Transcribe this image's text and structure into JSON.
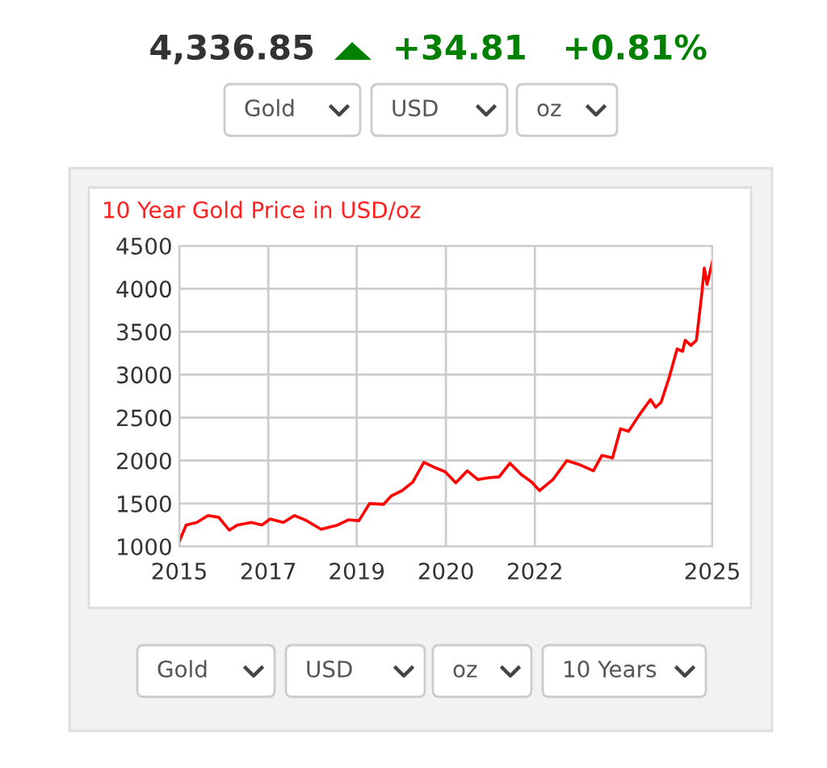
{
  "chart_data": {
    "type": "line",
    "title": "10 Year Gold Price in USD/oz",
    "x": [
      "2015-10-19",
      "2015-12-05",
      "2016-02-16",
      "2016-05-03",
      "2016-07-15",
      "2016-09-26",
      "2016-11-20",
      "2017-02-24",
      "2017-05-08",
      "2017-07-02",
      "2017-10-01",
      "2017-12-16",
      "2018-02-27",
      "2018-06-17",
      "2018-10-08",
      "2018-12-20",
      "2019-03-03",
      "2019-05-15",
      "2019-08-18",
      "2019-10-12",
      "2019-12-24",
      "2020-03-06",
      "2020-05-21",
      "2020-08-02",
      "2020-10-14",
      "2020-12-26",
      "2021-03-14",
      "2021-05-26",
      "2021-08-07",
      "2021-10-19",
      "2022-01-01",
      "2022-03-18",
      "2022-05-30",
      "2022-07-23",
      "2022-10-23",
      "2023-01-26",
      "2023-04-27",
      "2023-07-27",
      "2023-09-23",
      "2023-12-05",
      "2024-01-29",
      "2024-03-24",
      "2024-06-05",
      "2024-08-21",
      "2024-09-26",
      "2024-11-02",
      "2024-12-26",
      "2025-02-20",
      "2025-03-29",
      "2025-04-16",
      "2025-05-26",
      "2025-07-02",
      "2025-08-07",
      "2025-08-25",
      "2025-09-13",
      "2025-10-01",
      "2025-10-19"
    ],
    "series": [
      {
        "color": "#ff0000",
        "values": [
          1060,
          1250,
          1280,
          1360,
          1340,
          1190,
          1250,
          1280,
          1250,
          1320,
          1280,
          1360,
          1310,
          1200,
          1250,
          1310,
          1300,
          1500,
          1490,
          1590,
          1650,
          1750,
          1980,
          1920,
          1870,
          1740,
          1880,
          1780,
          1800,
          1810,
          1970,
          1840,
          1750,
          1650,
          1780,
          2000,
          1950,
          1880,
          2060,
          2030,
          2370,
          2340,
          2530,
          2710,
          2620,
          2680,
          2960,
          3300,
          3270,
          3400,
          3340,
          3400,
          3930,
          4240,
          4050,
          4180,
          4310
        ]
      }
    ],
    "xlim": [
      "2015-10-19",
      "2025-10-19"
    ],
    "xticks": [
      {
        "value": "2015-10-19",
        "label": "2015"
      },
      {
        "value": "2017-06-20",
        "label": "2017"
      },
      {
        "value": "2019-02-16",
        "label": "2019"
      },
      {
        "value": "2020-10-19",
        "label": "2020"
      },
      {
        "value": "2022-06-21",
        "label": "2022"
      },
      {
        "value": "2025-10-19",
        "label": "2025"
      }
    ],
    "ylim": [
      1000,
      4500
    ],
    "yticks": [
      1000,
      1500,
      2000,
      2500,
      3000,
      3500,
      4000,
      4500
    ],
    "grid": true,
    "marker": "none",
    "line_style": "solid",
    "annotations": [
      "4,336.85",
      "+34.81",
      "+0.81%",
      "Gold",
      "USD",
      "oz",
      "Gold",
      "USD",
      "oz",
      "10 Years"
    ]
  }
}
